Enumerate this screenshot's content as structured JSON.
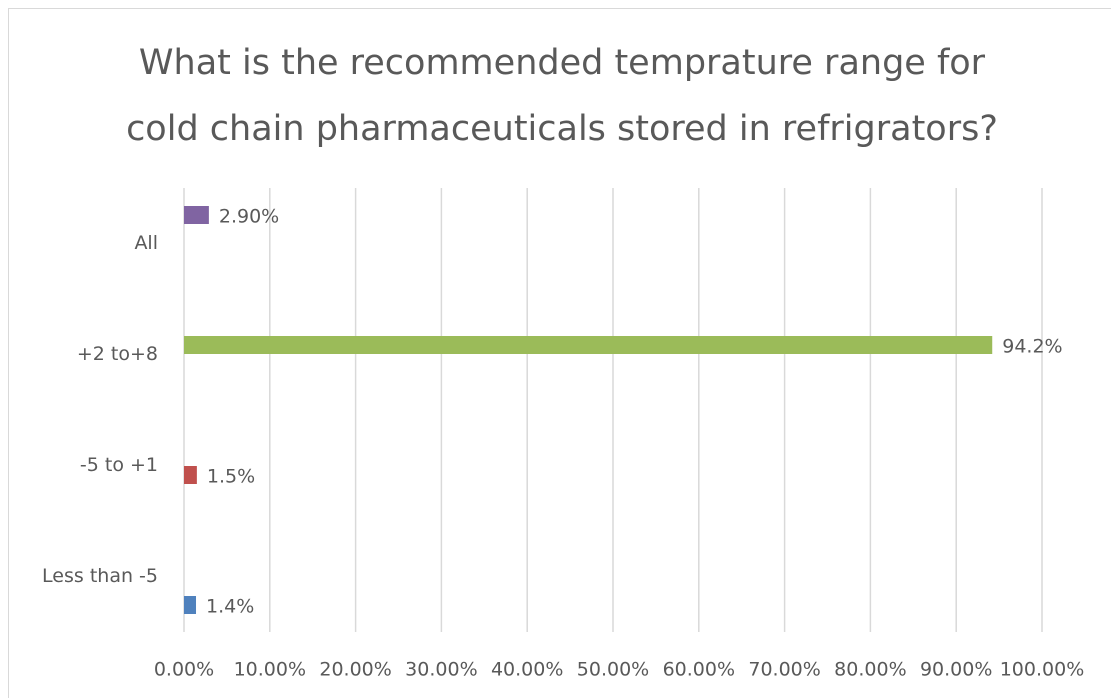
{
  "chart_data": {
    "type": "bar",
    "orientation": "horizontal",
    "title": [
      "What is the recommended temprature range for",
      "cold chain pharmaceuticals stored in refrigrators?"
    ],
    "categories": [
      "All",
      "+2 to+8",
      "-5 to +1",
      "Less than -5"
    ],
    "values": [
      2.9,
      94.2,
      1.5,
      1.4
    ],
    "value_labels": [
      "2.90%",
      "94.2%",
      "1.5%",
      "1.4%"
    ],
    "colors": [
      "#8064a2",
      "#9bbb59",
      "#c0504d",
      "#4f81bd"
    ],
    "xlim": [
      0,
      100
    ],
    "xticks": [
      {
        "value": 0,
        "label": "0.00%"
      },
      {
        "value": 10,
        "label": "10.00%"
      },
      {
        "value": 20,
        "label": "20.00%"
      },
      {
        "value": 30,
        "label": "30.00%"
      },
      {
        "value": 40,
        "label": "40.00%"
      },
      {
        "value": 50,
        "label": "50.00%"
      },
      {
        "value": 60,
        "label": "60.00%"
      },
      {
        "value": 70,
        "label": "70.00%"
      },
      {
        "value": 80,
        "label": "80.00%"
      },
      {
        "value": 90,
        "label": "90.00%"
      },
      {
        "value": 100,
        "label": "100.00%"
      }
    ],
    "grid": true
  }
}
